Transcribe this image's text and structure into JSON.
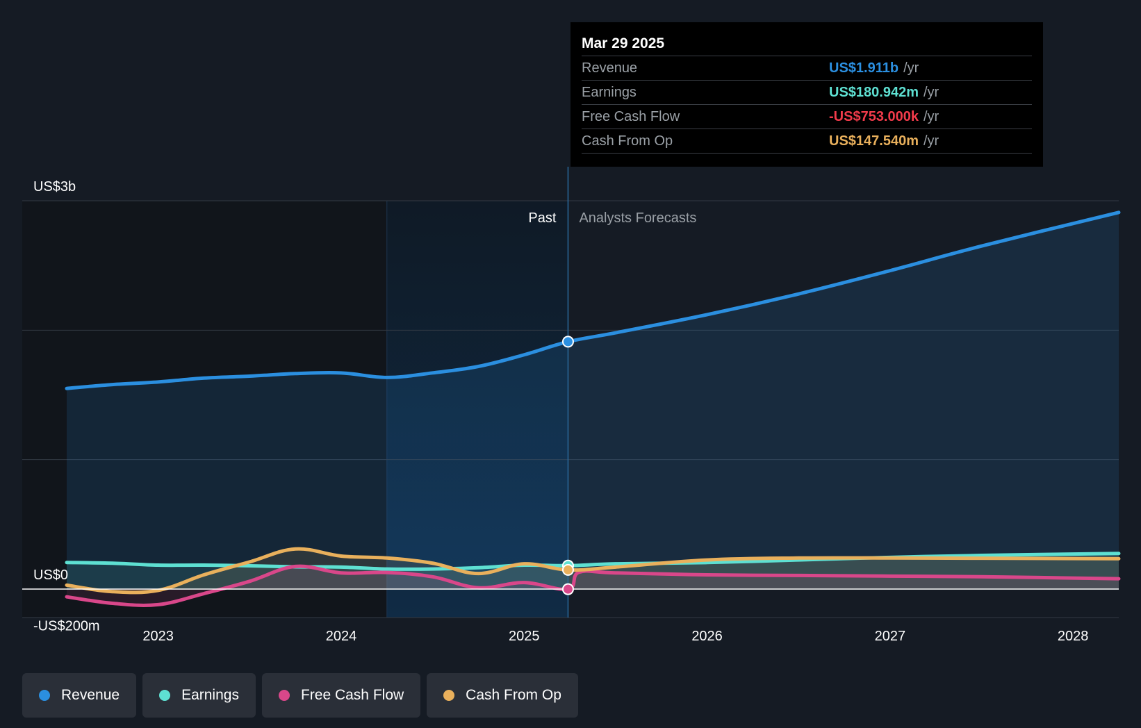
{
  "chart_data": {
    "type": "line",
    "x_range": [
      2022.5,
      2028.25
    ],
    "y_range_millions": [
      -200,
      3000
    ],
    "y_tick_labels": [
      {
        "value": 3000,
        "label": "US$3b"
      },
      {
        "value": 0,
        "label": "US$0"
      },
      {
        "value": -200,
        "label": "-US$200m"
      }
    ],
    "x_ticks": [
      {
        "value": 2023,
        "label": "2023"
      },
      {
        "value": 2024,
        "label": "2024"
      },
      {
        "value": 2025,
        "label": "2025"
      },
      {
        "value": 2026,
        "label": "2026"
      },
      {
        "value": 2027,
        "label": "2027"
      },
      {
        "value": 2028,
        "label": "2028"
      }
    ],
    "grid": true,
    "past_label": "Past",
    "forecast_label": "Analysts Forecasts",
    "past_highlight_start": 2024.25,
    "divider_x": 2025.24,
    "series": [
      {
        "name": "Revenue",
        "color": "#2b8fe0",
        "fill": true,
        "points": [
          [
            2022.5,
            1550
          ],
          [
            2022.75,
            1580
          ],
          [
            2023,
            1600
          ],
          [
            2023.25,
            1630
          ],
          [
            2023.5,
            1645
          ],
          [
            2023.75,
            1665
          ],
          [
            2024,
            1670
          ],
          [
            2024.25,
            1635
          ],
          [
            2024.5,
            1670
          ],
          [
            2024.75,
            1720
          ],
          [
            2025,
            1810
          ],
          [
            2025.24,
            1911
          ],
          [
            2025.5,
            1980
          ],
          [
            2026,
            2120
          ],
          [
            2026.5,
            2280
          ],
          [
            2027,
            2460
          ],
          [
            2027.5,
            2650
          ],
          [
            2028.25,
            2910
          ]
        ]
      },
      {
        "name": "Earnings",
        "color": "#5ee0d2",
        "fill": true,
        "points": [
          [
            2022.5,
            205
          ],
          [
            2022.75,
            200
          ],
          [
            2023,
            185
          ],
          [
            2023.25,
            185
          ],
          [
            2023.5,
            180
          ],
          [
            2023.75,
            172
          ],
          [
            2024,
            170
          ],
          [
            2024.25,
            155
          ],
          [
            2024.5,
            155
          ],
          [
            2024.75,
            165
          ],
          [
            2025,
            185
          ],
          [
            2025.24,
            181
          ],
          [
            2025.5,
            195
          ],
          [
            2026,
            205
          ],
          [
            2026.5,
            225
          ],
          [
            2027,
            245
          ],
          [
            2027.5,
            260
          ],
          [
            2028.25,
            275
          ]
        ]
      },
      {
        "name": "Free Cash Flow",
        "color": "#d9478a",
        "fill": true,
        "points": [
          [
            2022.5,
            -60
          ],
          [
            2022.75,
            -110
          ],
          [
            2023,
            -120
          ],
          [
            2023.25,
            -35
          ],
          [
            2023.5,
            60
          ],
          [
            2023.75,
            175
          ],
          [
            2024,
            125
          ],
          [
            2024.25,
            128
          ],
          [
            2024.5,
            95
          ],
          [
            2024.75,
            10
          ],
          [
            2025,
            50
          ],
          [
            2025.24,
            -1
          ],
          [
            2025.3,
            130
          ],
          [
            2025.5,
            125
          ],
          [
            2026,
            110
          ],
          [
            2026.5,
            105
          ],
          [
            2027,
            100
          ],
          [
            2027.5,
            95
          ],
          [
            2028.25,
            80
          ]
        ]
      },
      {
        "name": "Cash From Op",
        "color": "#e9b05c",
        "fill": true,
        "points": [
          [
            2022.5,
            30
          ],
          [
            2022.75,
            -20
          ],
          [
            2023,
            -10
          ],
          [
            2023.25,
            110
          ],
          [
            2023.5,
            210
          ],
          [
            2023.75,
            310
          ],
          [
            2024,
            255
          ],
          [
            2024.25,
            240
          ],
          [
            2024.5,
            200
          ],
          [
            2024.75,
            120
          ],
          [
            2025,
            195
          ],
          [
            2025.24,
            148
          ],
          [
            2025.5,
            170
          ],
          [
            2026,
            225
          ],
          [
            2026.5,
            240
          ],
          [
            2027,
            240
          ],
          [
            2027.5,
            238
          ],
          [
            2028.25,
            235
          ]
        ]
      }
    ]
  },
  "tooltip": {
    "date": "Mar 29 2025",
    "rows": [
      {
        "name": "Revenue",
        "value": "US$1.911b",
        "unit": "/yr",
        "color": "#2b8fe0"
      },
      {
        "name": "Earnings",
        "value": "US$180.942m",
        "unit": "/yr",
        "color": "#5ee0d2"
      },
      {
        "name": "Free Cash Flow",
        "value": "-US$753.000k",
        "unit": "/yr",
        "color": "#f23b4b"
      },
      {
        "name": "Cash From Op",
        "value": "US$147.540m",
        "unit": "/yr",
        "color": "#e9b05c"
      }
    ]
  },
  "legend": [
    {
      "label": "Revenue",
      "color": "#2b8fe0"
    },
    {
      "label": "Earnings",
      "color": "#5ee0d2"
    },
    {
      "label": "Free Cash Flow",
      "color": "#d9478a"
    },
    {
      "label": "Cash From Op",
      "color": "#e9b05c"
    }
  ]
}
